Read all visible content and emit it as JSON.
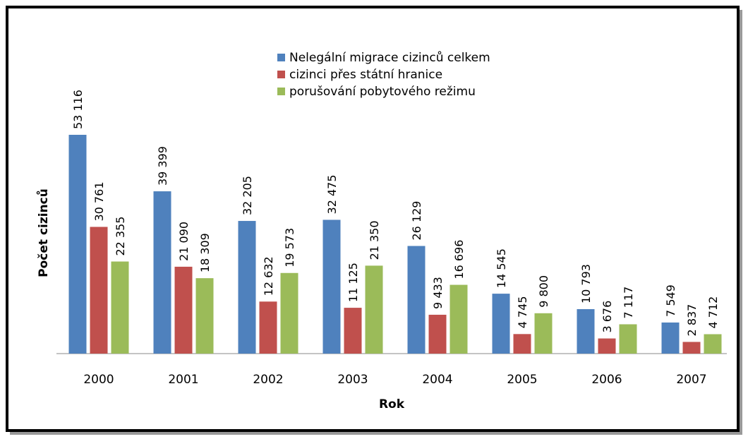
{
  "chart_data": {
    "type": "bar",
    "categories": [
      "2000",
      "2001",
      "2002",
      "2003",
      "2004",
      "2005",
      "2006",
      "2007"
    ],
    "series": [
      {
        "name": "Nelegální migrace cizinců celkem",
        "color": "#4f81bd",
        "values": [
          53116,
          39399,
          32205,
          32475,
          26129,
          14545,
          10793,
          7549
        ],
        "value_labels": [
          "53 116",
          "39 399",
          "32 205",
          "32 475",
          "26 129",
          "14 545",
          "10 793",
          "7 549"
        ]
      },
      {
        "name": "cizinci přes státní hranice",
        "color": "#c0504d",
        "values": [
          30761,
          21090,
          12632,
          11125,
          9433,
          4745,
          3676,
          2837
        ],
        "value_labels": [
          "30 761",
          "21 090",
          "12 632",
          "11 125",
          "9 433",
          "4 745",
          "3 676",
          "2 837"
        ]
      },
      {
        "name": "porušování pobytového režimu",
        "color": "#9bbb59",
        "values": [
          22355,
          18309,
          19573,
          21350,
          16696,
          9800,
          7117,
          4712
        ],
        "value_labels": [
          "22 355",
          "18 309",
          "19 573",
          "21 350",
          "16 696",
          "9 800",
          "7 117",
          "4 712"
        ]
      }
    ],
    "xlabel": "Rok",
    "ylabel": "Počet cizinců",
    "legend": "top"
  }
}
